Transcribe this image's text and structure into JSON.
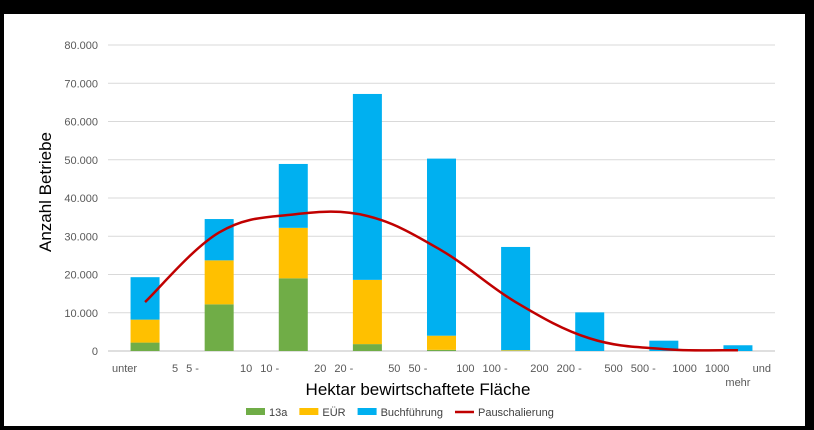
{
  "chart_data": {
    "type": "bar",
    "stacked": true,
    "categories": [
      [
        "unter",
        "5"
      ],
      [
        "5  -",
        "10"
      ],
      [
        "10  -",
        "20"
      ],
      [
        "20  -",
        "50"
      ],
      [
        "50  -",
        "100"
      ],
      [
        "100  -",
        "200"
      ],
      [
        "200  -",
        "500"
      ],
      [
        "500  -",
        "1000"
      ],
      [
        "1000",
        "und",
        "mehr"
      ]
    ],
    "series": [
      {
        "name": "13a",
        "type": "bar",
        "color": "#70AD47",
        "values": [
          2200,
          12200,
          19000,
          1800,
          300,
          0,
          0,
          0,
          0
        ]
      },
      {
        "name": "EÜR",
        "type": "bar",
        "color": "#FFC000",
        "values": [
          6000,
          11500,
          13200,
          16800,
          3700,
          200,
          0,
          0,
          0
        ]
      },
      {
        "name": "Buchführung",
        "type": "bar",
        "color": "#00B0F0",
        "values": [
          11100,
          10800,
          16700,
          48600,
          46300,
          27000,
          10100,
          2700,
          1500
        ]
      },
      {
        "name": "Pauschalierung",
        "type": "line",
        "color": "#C00000",
        "values": [
          12800,
          31000,
          35700,
          35300,
          26300,
          12800,
          3300,
          500,
          200
        ]
      }
    ],
    "xlabel": "Hektar bewirtschaftete Fläche",
    "ylabel": "Anzahl Betriebe",
    "ylim": [
      0,
      80000
    ],
    "yticks": [
      "0",
      "10.000",
      "20.000",
      "30.000",
      "40.000",
      "50.000",
      "60.000",
      "70.000",
      "80.000"
    ],
    "grid": true,
    "legend_position": "bottom"
  }
}
